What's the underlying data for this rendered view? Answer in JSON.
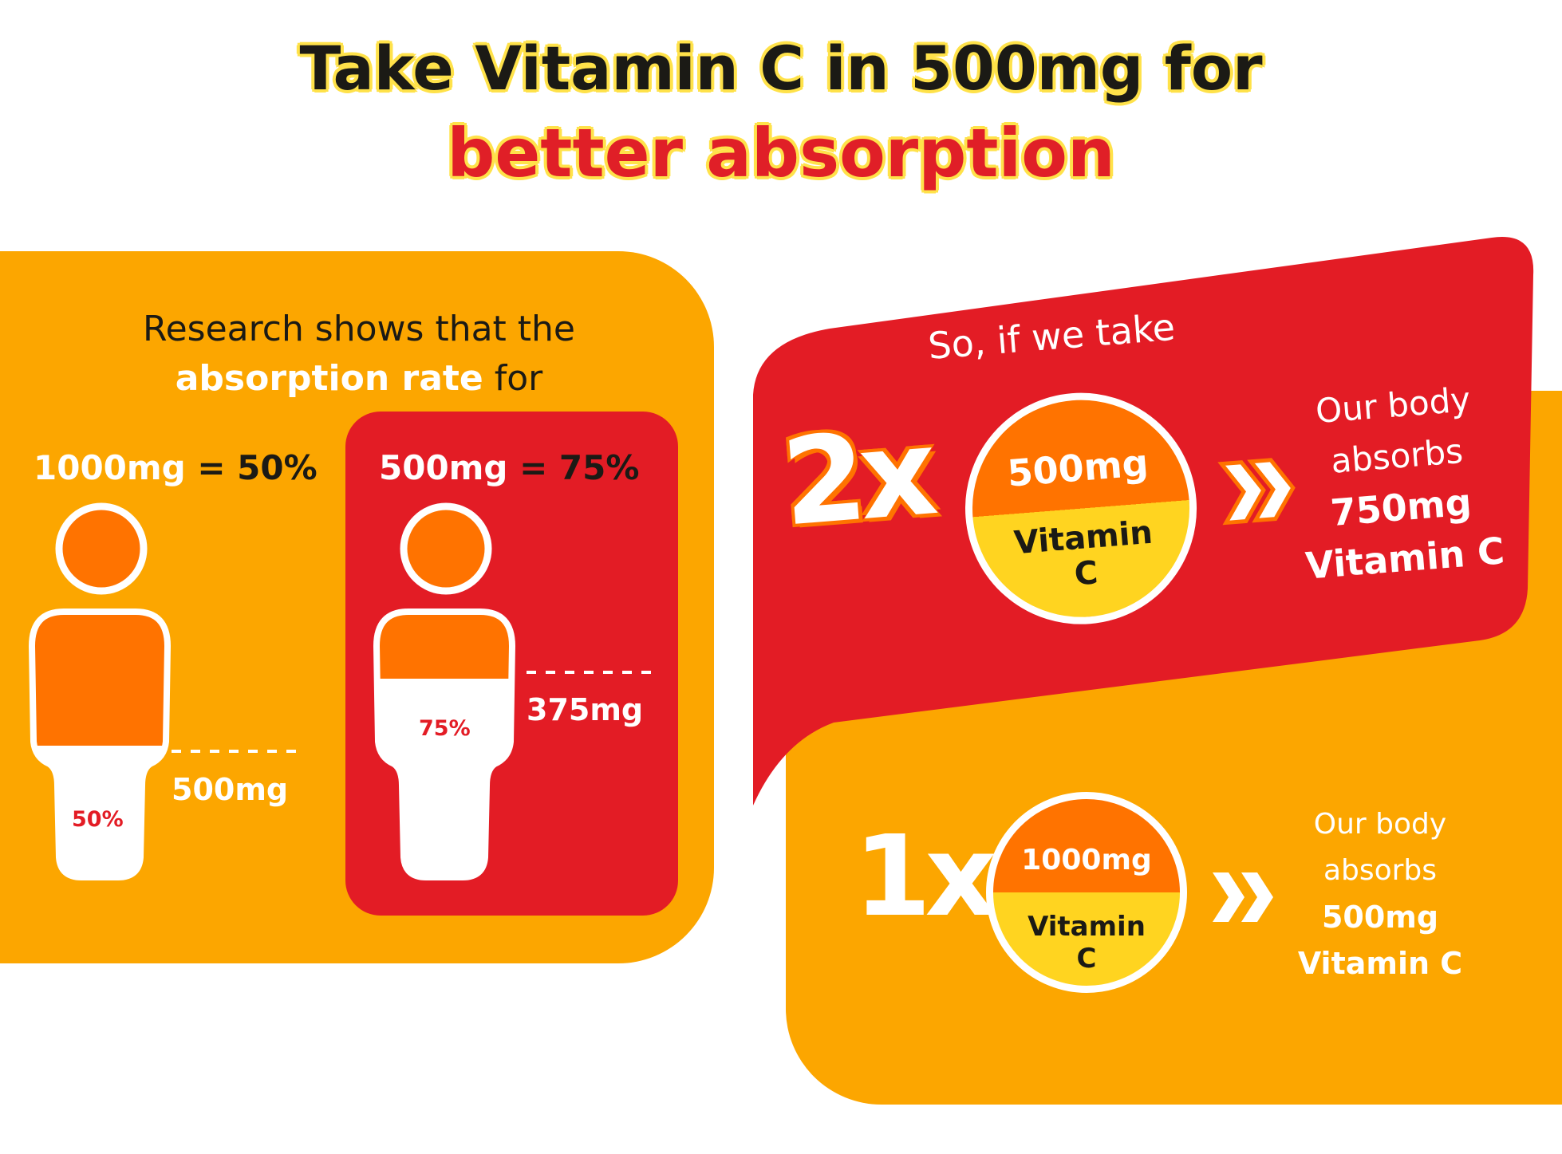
{
  "header": {
    "title_line1": "Take Vitamin C in 500mg for",
    "title_line2": "better absorption"
  },
  "left_panel": {
    "intro_line1": "Research shows that the",
    "intro_highlight": "absorption rate",
    "intro_line2_end": " for",
    "left_dose": "1000mg",
    "left_rate": " = 50%",
    "left_absorbed": "500mg",
    "left_pct": "50%",
    "left_fill": 0.5,
    "right_dose": "500mg",
    "right_rate": " = 75%",
    "right_absorbed": "375mg",
    "right_pct": "75%",
    "right_fill": 0.75
  },
  "top_right": {
    "lead": "So, if we take",
    "multiplier": "2x",
    "pill_dose": "500mg",
    "pill_name_1": "Vitamin",
    "pill_name_2": "C",
    "result_1": "Our body",
    "result_2": "absorbs",
    "result_3": "750mg",
    "result_4": "Vitamin C"
  },
  "bottom_right": {
    "multiplier": "1x",
    "pill_dose": "1000mg",
    "pill_name_1": "Vitamin",
    "pill_name_2": "C",
    "result_1": "Our body",
    "result_2": "absorbs",
    "result_3": "500mg",
    "result_4": "Vitamin C"
  },
  "colors": {
    "orange_bg": "#fca600",
    "red": "#e31c25",
    "deep_orange": "#ff7300",
    "yellow": "#ffd420",
    "dark_text": "#1b1a15"
  },
  "icons": [
    "person-icon",
    "double-chevron-right-icon"
  ]
}
